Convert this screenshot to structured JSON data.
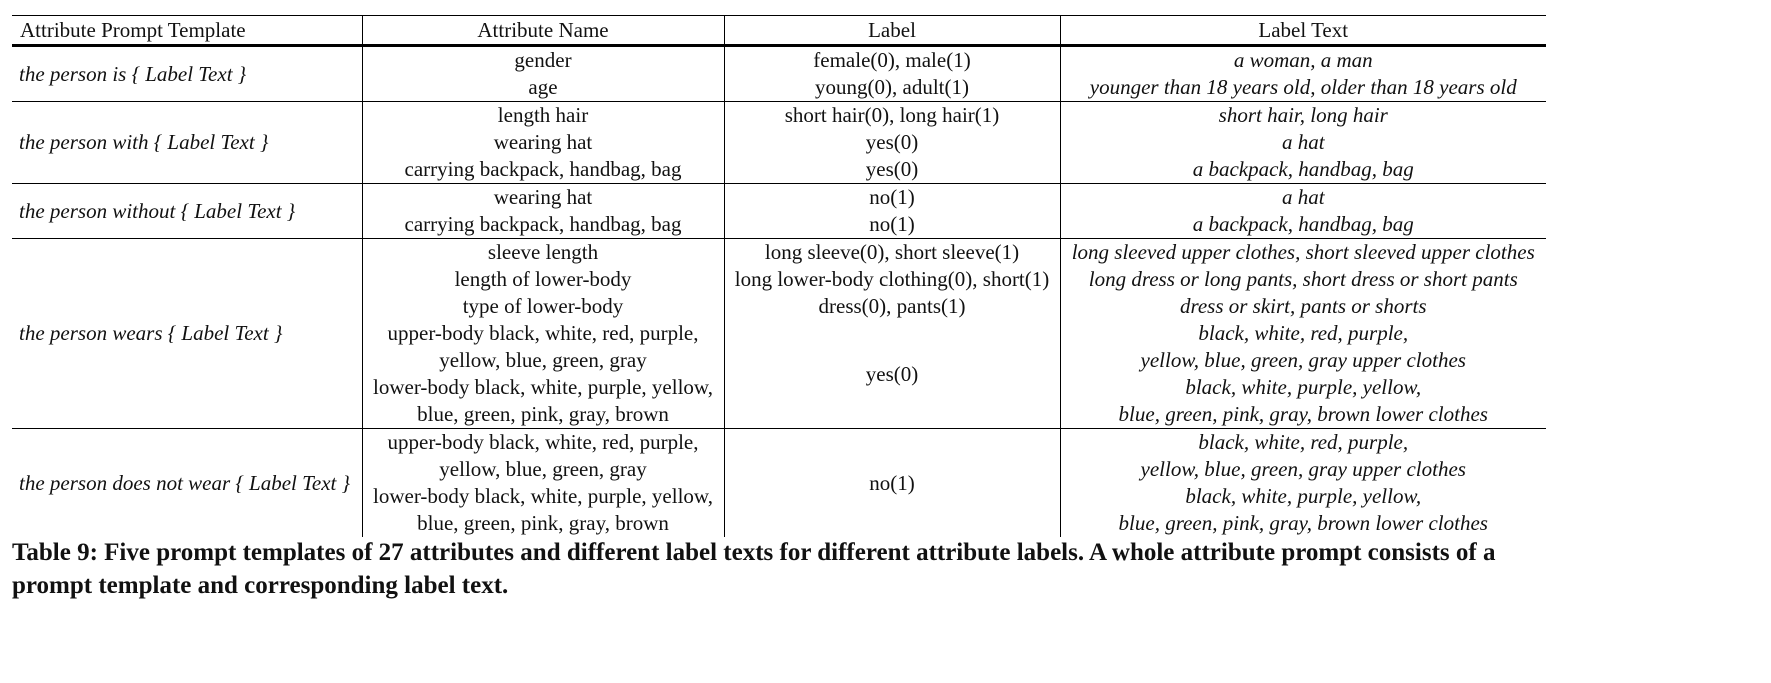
{
  "table": {
    "headers": [
      "Attribute Prompt Template",
      "Attribute Name",
      "Label",
      "Label Text"
    ],
    "groups": [
      {
        "template": "the person is { Label Text }",
        "names": [
          "gender",
          "age"
        ],
        "labels": [
          "female(0), male(1)",
          "young(0), adult(1)"
        ],
        "texts": [
          "a woman, a man",
          "younger than 18 years old, older than 18 years old"
        ]
      },
      {
        "template": "the person with { Label Text }",
        "names": [
          "length hair",
          "wearing hat",
          "carrying backpack, handbag, bag"
        ],
        "labels": [
          "short hair(0), long hair(1)",
          "yes(0)",
          "yes(0)"
        ],
        "texts": [
          "short hair, long hair",
          "a hat",
          "a backpack, handbag, bag"
        ]
      },
      {
        "template": "the person without { Label Text }",
        "names": [
          "wearing hat",
          "carrying backpack, handbag, bag"
        ],
        "labels": [
          "no(1)",
          "no(1)"
        ],
        "texts": [
          "a hat",
          "a backpack, handbag, bag"
        ]
      },
      {
        "template": "the person wears { Label Text }",
        "names": [
          "sleeve length",
          "length of lower-body",
          "type of lower-body",
          "upper-body black, white, red, purple,",
          "yellow, blue, green, gray",
          "lower-body black, white, purple, yellow,",
          "blue, green, pink, gray, brown"
        ],
        "labels": [
          "long sleeve(0), short sleeve(1)",
          "long lower-body clothing(0), short(1)",
          "dress(0), pants(1)"
        ],
        "merged_label": "yes(0)",
        "texts": [
          "long sleeved upper clothes, short sleeved upper clothes",
          "long dress or long pants, short dress or short pants",
          "dress or skirt, pants or shorts",
          "black, white, red, purple,",
          "yellow, blue, green, gray upper clothes",
          "black, white, purple, yellow,",
          "blue, green, pink, gray, brown lower clothes"
        ]
      },
      {
        "template": "the person does not wear { Label Text }",
        "names": [
          "upper-body black, white, red, purple,",
          "yellow, blue, green, gray",
          "lower-body black, white, purple, yellow,",
          "blue, green, pink, gray, brown"
        ],
        "merged_label": "no(1)",
        "texts": [
          "black, white, red, purple,",
          "yellow, blue, green, gray upper clothes",
          "black, white, purple, yellow,",
          "blue, green, pink, gray, brown lower clothes"
        ]
      }
    ]
  },
  "caption": "Table 9: Five prompt templates of 27 attributes and different label texts for different attribute labels. A whole attribute prompt consists of a prompt template and corresponding label text."
}
